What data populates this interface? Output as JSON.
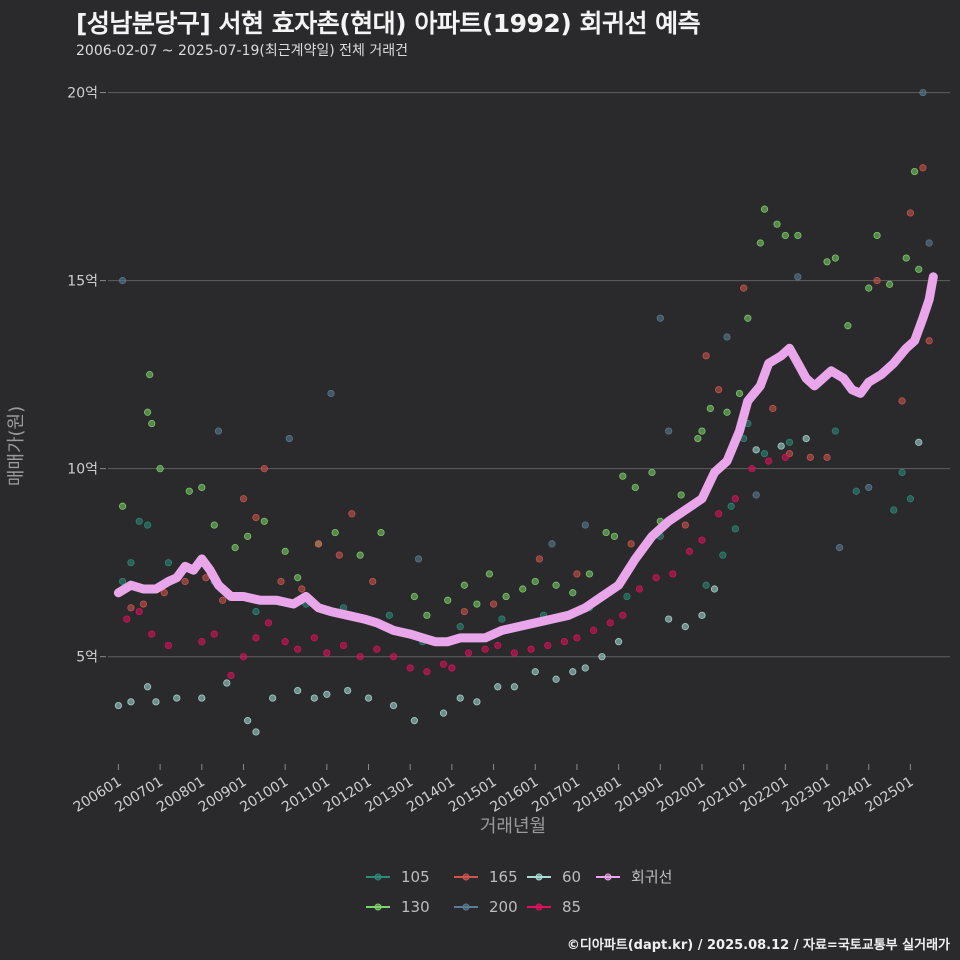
{
  "header": {
    "title": "[성남분당구] 서현 효자촌(현대) 아파트(1992) 회귀선 예측",
    "subtitle": "2006-02-07 ~ 2025-07-19(최근계약일) 전체 거래건"
  },
  "footer": {
    "credit": "©디아파트(dapt.kr) / 2025.08.12 / 자료=국토교통부 실거래가"
  },
  "colors": {
    "background": "#2a2a2c",
    "grid": "#5f5f62",
    "series_105": "#2e8b7a",
    "series_130": "#7ed36b",
    "series_165": "#d0554e",
    "series_200": "#5a7d95",
    "series_60": "#a9dcd6",
    "series_85": "#e0105f",
    "regression": "#eaa6ea"
  },
  "chart_data": {
    "type": "scatter",
    "xlabel": "거래년월",
    "ylabel": "매매가(원)",
    "x_ticks": [
      "200601",
      "200701",
      "200801",
      "200901",
      "201001",
      "201101",
      "201201",
      "201301",
      "201401",
      "201501",
      "201601",
      "201701",
      "201801",
      "201901",
      "202001",
      "202101",
      "202201",
      "202301",
      "202401",
      "202501"
    ],
    "y_ticks": [
      "5억",
      "10억",
      "15억",
      "20억"
    ],
    "y_tick_values": [
      5,
      10,
      15,
      20
    ],
    "xlim": [
      2005.75,
      2025.95
    ],
    "ylim": [
      2.2,
      20.6
    ],
    "y_unit": "억",
    "grid": "horizontal",
    "legend_position": "bottom",
    "series": [
      {
        "name": "105",
        "color_key": "series_105",
        "points": [
          [
            2006.1,
            7.0
          ],
          [
            2006.3,
            7.5
          ],
          [
            2006.5,
            8.6
          ],
          [
            2006.7,
            8.5
          ],
          [
            2007.2,
            7.5
          ],
          [
            2008.3,
            7.0
          ],
          [
            2009.3,
            6.2
          ],
          [
            2010.5,
            6.4
          ],
          [
            2011.4,
            6.3
          ],
          [
            2012.5,
            6.1
          ],
          [
            2013.3,
            5.4
          ],
          [
            2014.2,
            5.8
          ],
          [
            2015.2,
            6.0
          ],
          [
            2016.2,
            6.1
          ],
          [
            2017.3,
            6.3
          ],
          [
            2018.2,
            6.6
          ],
          [
            2019.0,
            8.2
          ],
          [
            2020.1,
            6.9
          ],
          [
            2020.5,
            7.7
          ],
          [
            2020.7,
            9.0
          ],
          [
            2020.8,
            8.4
          ],
          [
            2021.0,
            10.8
          ],
          [
            2021.1,
            11.2
          ],
          [
            2021.5,
            10.4
          ],
          [
            2022.1,
            10.7
          ],
          [
            2023.2,
            11.0
          ],
          [
            2023.7,
            9.4
          ],
          [
            2024.6,
            8.9
          ],
          [
            2024.8,
            9.9
          ],
          [
            2025.0,
            9.2
          ]
        ]
      },
      {
        "name": "130",
        "color_key": "series_130",
        "points": [
          [
            2006.1,
            9.0
          ],
          [
            2006.7,
            11.5
          ],
          [
            2006.75,
            12.5
          ],
          [
            2006.8,
            11.2
          ],
          [
            2007.0,
            10.0
          ],
          [
            2007.7,
            9.4
          ],
          [
            2008.0,
            9.5
          ],
          [
            2008.3,
            8.5
          ],
          [
            2008.8,
            7.9
          ],
          [
            2009.1,
            8.2
          ],
          [
            2009.5,
            8.6
          ],
          [
            2010.0,
            7.8
          ],
          [
            2010.3,
            7.1
          ],
          [
            2010.8,
            8.0
          ],
          [
            2011.2,
            8.3
          ],
          [
            2011.8,
            7.7
          ],
          [
            2012.3,
            8.3
          ],
          [
            2013.1,
            6.6
          ],
          [
            2013.4,
            6.1
          ],
          [
            2013.9,
            6.5
          ],
          [
            2014.3,
            6.9
          ],
          [
            2014.6,
            6.4
          ],
          [
            2014.9,
            7.2
          ],
          [
            2015.3,
            6.6
          ],
          [
            2015.7,
            6.8
          ],
          [
            2016.0,
            7.0
          ],
          [
            2016.5,
            6.9
          ],
          [
            2016.9,
            6.7
          ],
          [
            2017.3,
            7.2
          ],
          [
            2017.7,
            8.3
          ],
          [
            2017.9,
            8.2
          ],
          [
            2018.1,
            9.8
          ],
          [
            2018.4,
            9.5
          ],
          [
            2018.8,
            9.9
          ],
          [
            2019.0,
            8.6
          ],
          [
            2019.5,
            9.3
          ],
          [
            2019.9,
            10.8
          ],
          [
            2020.0,
            11.0
          ],
          [
            2020.2,
            11.6
          ],
          [
            2020.6,
            11.5
          ],
          [
            2020.9,
            12.0
          ],
          [
            2021.1,
            14.0
          ],
          [
            2021.4,
            16.0
          ],
          [
            2021.5,
            16.9
          ],
          [
            2021.8,
            16.5
          ],
          [
            2022.0,
            16.2
          ],
          [
            2022.3,
            16.2
          ],
          [
            2023.0,
            15.5
          ],
          [
            2023.2,
            15.6
          ],
          [
            2023.5,
            13.8
          ],
          [
            2024.0,
            14.8
          ],
          [
            2024.2,
            16.2
          ],
          [
            2024.5,
            14.9
          ],
          [
            2024.9,
            15.6
          ],
          [
            2025.1,
            17.9
          ],
          [
            2025.2,
            15.3
          ]
        ]
      },
      {
        "name": "165",
        "color_key": "series_165",
        "points": [
          [
            2006.3,
            6.3
          ],
          [
            2006.6,
            6.4
          ],
          [
            2007.1,
            6.7
          ],
          [
            2007.6,
            7.0
          ],
          [
            2008.1,
            7.1
          ],
          [
            2008.5,
            6.5
          ],
          [
            2009.0,
            9.2
          ],
          [
            2009.3,
            8.7
          ],
          [
            2009.5,
            10.0
          ],
          [
            2009.9,
            7.0
          ],
          [
            2010.4,
            6.8
          ],
          [
            2010.8,
            8.0
          ],
          [
            2011.3,
            7.7
          ],
          [
            2011.6,
            8.8
          ],
          [
            2012.1,
            7.0
          ],
          [
            2014.3,
            6.2
          ],
          [
            2015.0,
            6.4
          ],
          [
            2016.1,
            7.6
          ],
          [
            2017.0,
            7.2
          ],
          [
            2018.3,
            8.0
          ],
          [
            2019.6,
            8.5
          ],
          [
            2020.1,
            13.0
          ],
          [
            2020.4,
            12.1
          ],
          [
            2021.0,
            14.8
          ],
          [
            2021.7,
            11.6
          ],
          [
            2022.1,
            10.4
          ],
          [
            2022.6,
            10.3
          ],
          [
            2023.0,
            10.3
          ],
          [
            2024.2,
            15.0
          ],
          [
            2024.8,
            11.8
          ],
          [
            2025.0,
            16.8
          ],
          [
            2025.3,
            18.0
          ],
          [
            2025.45,
            13.4
          ]
        ]
      },
      {
        "name": "200",
        "color_key": "series_200",
        "points": [
          [
            2006.1,
            15.0
          ],
          [
            2008.4,
            11.0
          ],
          [
            2010.1,
            10.8
          ],
          [
            2011.1,
            12.0
          ],
          [
            2013.2,
            7.6
          ],
          [
            2016.4,
            8.0
          ],
          [
            2017.2,
            8.5
          ],
          [
            2019.0,
            14.0
          ],
          [
            2019.2,
            11.0
          ],
          [
            2020.6,
            13.5
          ],
          [
            2021.3,
            9.3
          ],
          [
            2022.3,
            15.1
          ],
          [
            2023.3,
            7.9
          ],
          [
            2024.0,
            9.5
          ],
          [
            2025.3,
            20.0
          ],
          [
            2025.45,
            16.0
          ]
        ]
      },
      {
        "name": "60",
        "color_key": "series_60",
        "points": [
          [
            2006.0,
            3.7
          ],
          [
            2006.3,
            3.8
          ],
          [
            2006.7,
            4.2
          ],
          [
            2006.9,
            3.8
          ],
          [
            2007.4,
            3.9
          ],
          [
            2008.0,
            3.9
          ],
          [
            2008.6,
            4.3
          ],
          [
            2009.1,
            3.3
          ],
          [
            2009.3,
            3.0
          ],
          [
            2009.7,
            3.9
          ],
          [
            2010.3,
            4.1
          ],
          [
            2010.7,
            3.9
          ],
          [
            2011.0,
            4.0
          ],
          [
            2011.5,
            4.1
          ],
          [
            2012.0,
            3.9
          ],
          [
            2012.6,
            3.7
          ],
          [
            2013.1,
            3.3
          ],
          [
            2013.8,
            3.5
          ],
          [
            2014.2,
            3.9
          ],
          [
            2014.6,
            3.8
          ],
          [
            2015.1,
            4.2
          ],
          [
            2015.5,
            4.2
          ],
          [
            2016.0,
            4.6
          ],
          [
            2016.5,
            4.4
          ],
          [
            2016.9,
            4.6
          ],
          [
            2017.2,
            4.7
          ],
          [
            2017.6,
            5.0
          ],
          [
            2018.0,
            5.4
          ],
          [
            2019.2,
            6.0
          ],
          [
            2019.6,
            5.8
          ],
          [
            2020.0,
            6.1
          ],
          [
            2020.3,
            6.8
          ],
          [
            2021.3,
            10.5
          ],
          [
            2021.9,
            10.6
          ],
          [
            2022.5,
            10.8
          ],
          [
            2025.2,
            10.7
          ]
        ]
      },
      {
        "name": "85",
        "color_key": "series_85",
        "points": [
          [
            2006.2,
            6.0
          ],
          [
            2006.5,
            6.2
          ],
          [
            2006.8,
            5.6
          ],
          [
            2007.2,
            5.3
          ],
          [
            2008.0,
            5.4
          ],
          [
            2008.3,
            5.6
          ],
          [
            2008.7,
            4.5
          ],
          [
            2009.0,
            5.0
          ],
          [
            2009.3,
            5.5
          ],
          [
            2009.6,
            5.9
          ],
          [
            2010.0,
            5.4
          ],
          [
            2010.3,
            5.2
          ],
          [
            2010.7,
            5.5
          ],
          [
            2011.0,
            5.1
          ],
          [
            2011.4,
            5.3
          ],
          [
            2011.8,
            5.0
          ],
          [
            2012.2,
            5.2
          ],
          [
            2012.6,
            5.0
          ],
          [
            2013.0,
            4.7
          ],
          [
            2013.4,
            4.6
          ],
          [
            2013.8,
            4.8
          ],
          [
            2014.0,
            4.7
          ],
          [
            2014.4,
            5.1
          ],
          [
            2014.8,
            5.2
          ],
          [
            2015.1,
            5.3
          ],
          [
            2015.5,
            5.1
          ],
          [
            2015.9,
            5.2
          ],
          [
            2016.3,
            5.3
          ],
          [
            2016.7,
            5.4
          ],
          [
            2017.0,
            5.5
          ],
          [
            2017.4,
            5.7
          ],
          [
            2017.8,
            5.9
          ],
          [
            2018.1,
            6.1
          ],
          [
            2018.5,
            6.8
          ],
          [
            2018.9,
            7.1
          ],
          [
            2019.3,
            7.2
          ],
          [
            2019.7,
            7.8
          ],
          [
            2020.0,
            8.1
          ],
          [
            2020.4,
            8.8
          ],
          [
            2020.8,
            9.2
          ],
          [
            2021.2,
            10.0
          ],
          [
            2021.6,
            10.2
          ],
          [
            2022.0,
            10.3
          ]
        ]
      },
      {
        "name": "회귀선",
        "color_key": "regression",
        "type": "line",
        "points": [
          [
            2006.0,
            6.7
          ],
          [
            2006.3,
            6.9
          ],
          [
            2006.6,
            6.8
          ],
          [
            2006.9,
            6.8
          ],
          [
            2007.2,
            7.0
          ],
          [
            2007.4,
            7.1
          ],
          [
            2007.6,
            7.4
          ],
          [
            2007.8,
            7.3
          ],
          [
            2008.0,
            7.6
          ],
          [
            2008.2,
            7.3
          ],
          [
            2008.4,
            6.9
          ],
          [
            2008.7,
            6.6
          ],
          [
            2009.0,
            6.6
          ],
          [
            2009.4,
            6.5
          ],
          [
            2009.8,
            6.5
          ],
          [
            2010.2,
            6.4
          ],
          [
            2010.5,
            6.6
          ],
          [
            2010.8,
            6.3
          ],
          [
            2011.1,
            6.2
          ],
          [
            2011.5,
            6.1
          ],
          [
            2011.9,
            6.0
          ],
          [
            2012.2,
            5.9
          ],
          [
            2012.6,
            5.7
          ],
          [
            2013.0,
            5.6
          ],
          [
            2013.3,
            5.5
          ],
          [
            2013.6,
            5.4
          ],
          [
            2013.9,
            5.4
          ],
          [
            2014.2,
            5.5
          ],
          [
            2014.5,
            5.5
          ],
          [
            2014.8,
            5.5
          ],
          [
            2015.2,
            5.7
          ],
          [
            2015.6,
            5.8
          ],
          [
            2016.0,
            5.9
          ],
          [
            2016.4,
            6.0
          ],
          [
            2016.8,
            6.1
          ],
          [
            2017.2,
            6.3
          ],
          [
            2017.6,
            6.6
          ],
          [
            2018.0,
            6.9
          ],
          [
            2018.4,
            7.6
          ],
          [
            2018.8,
            8.2
          ],
          [
            2019.2,
            8.6
          ],
          [
            2019.6,
            8.9
          ],
          [
            2020.0,
            9.2
          ],
          [
            2020.3,
            9.9
          ],
          [
            2020.6,
            10.2
          ],
          [
            2020.9,
            11.0
          ],
          [
            2021.1,
            11.8
          ],
          [
            2021.4,
            12.2
          ],
          [
            2021.6,
            12.8
          ],
          [
            2021.9,
            13.0
          ],
          [
            2022.1,
            13.2
          ],
          [
            2022.3,
            12.8
          ],
          [
            2022.5,
            12.4
          ],
          [
            2022.7,
            12.2
          ],
          [
            2022.9,
            12.4
          ],
          [
            2023.1,
            12.6
          ],
          [
            2023.4,
            12.4
          ],
          [
            2023.6,
            12.1
          ],
          [
            2023.8,
            12.0
          ],
          [
            2024.0,
            12.3
          ],
          [
            2024.3,
            12.5
          ],
          [
            2024.6,
            12.8
          ],
          [
            2024.9,
            13.2
          ],
          [
            2025.1,
            13.4
          ],
          [
            2025.3,
            14.0
          ],
          [
            2025.45,
            14.5
          ],
          [
            2025.55,
            15.1
          ]
        ]
      }
    ]
  }
}
